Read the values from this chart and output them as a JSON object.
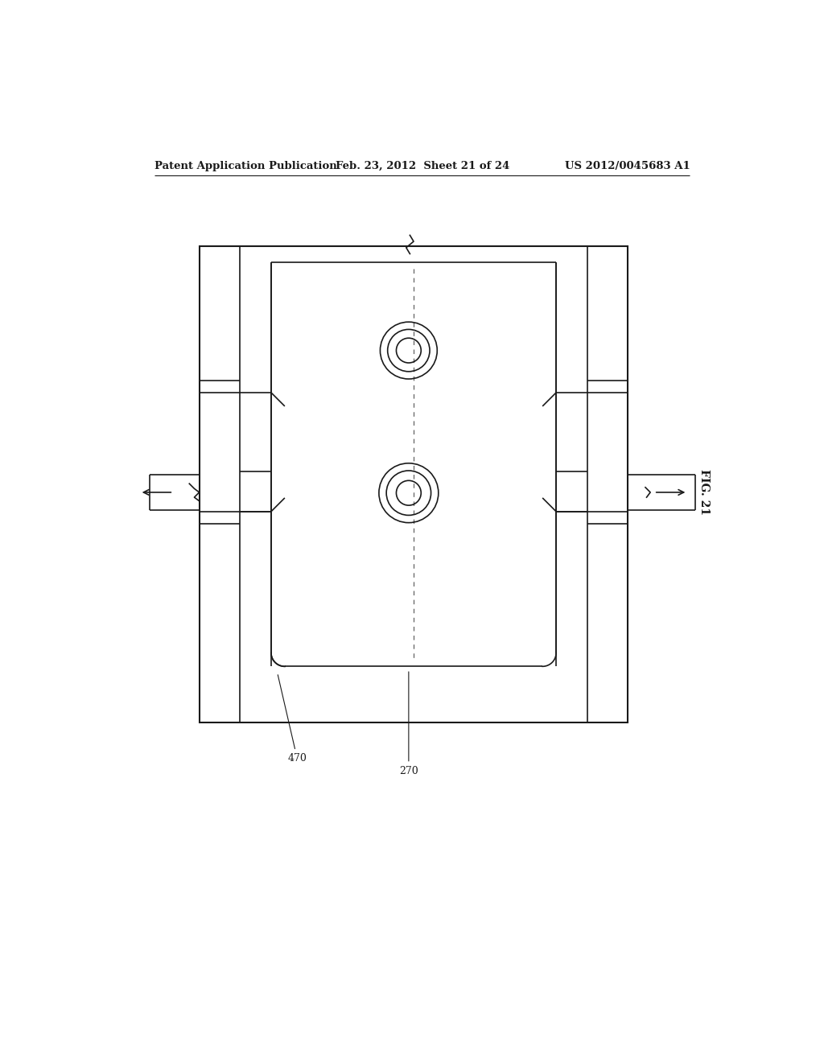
{
  "bg_color": "#ffffff",
  "line_color": "#1a1a1a",
  "header_text_left": "Patent Application Publication",
  "header_text_mid": "Feb. 23, 2012  Sheet 21 of 24",
  "header_text_right": "US 2012/0045683 A1",
  "fig_label": "FIG. 21",
  "label_470": "470",
  "label_270": "270"
}
